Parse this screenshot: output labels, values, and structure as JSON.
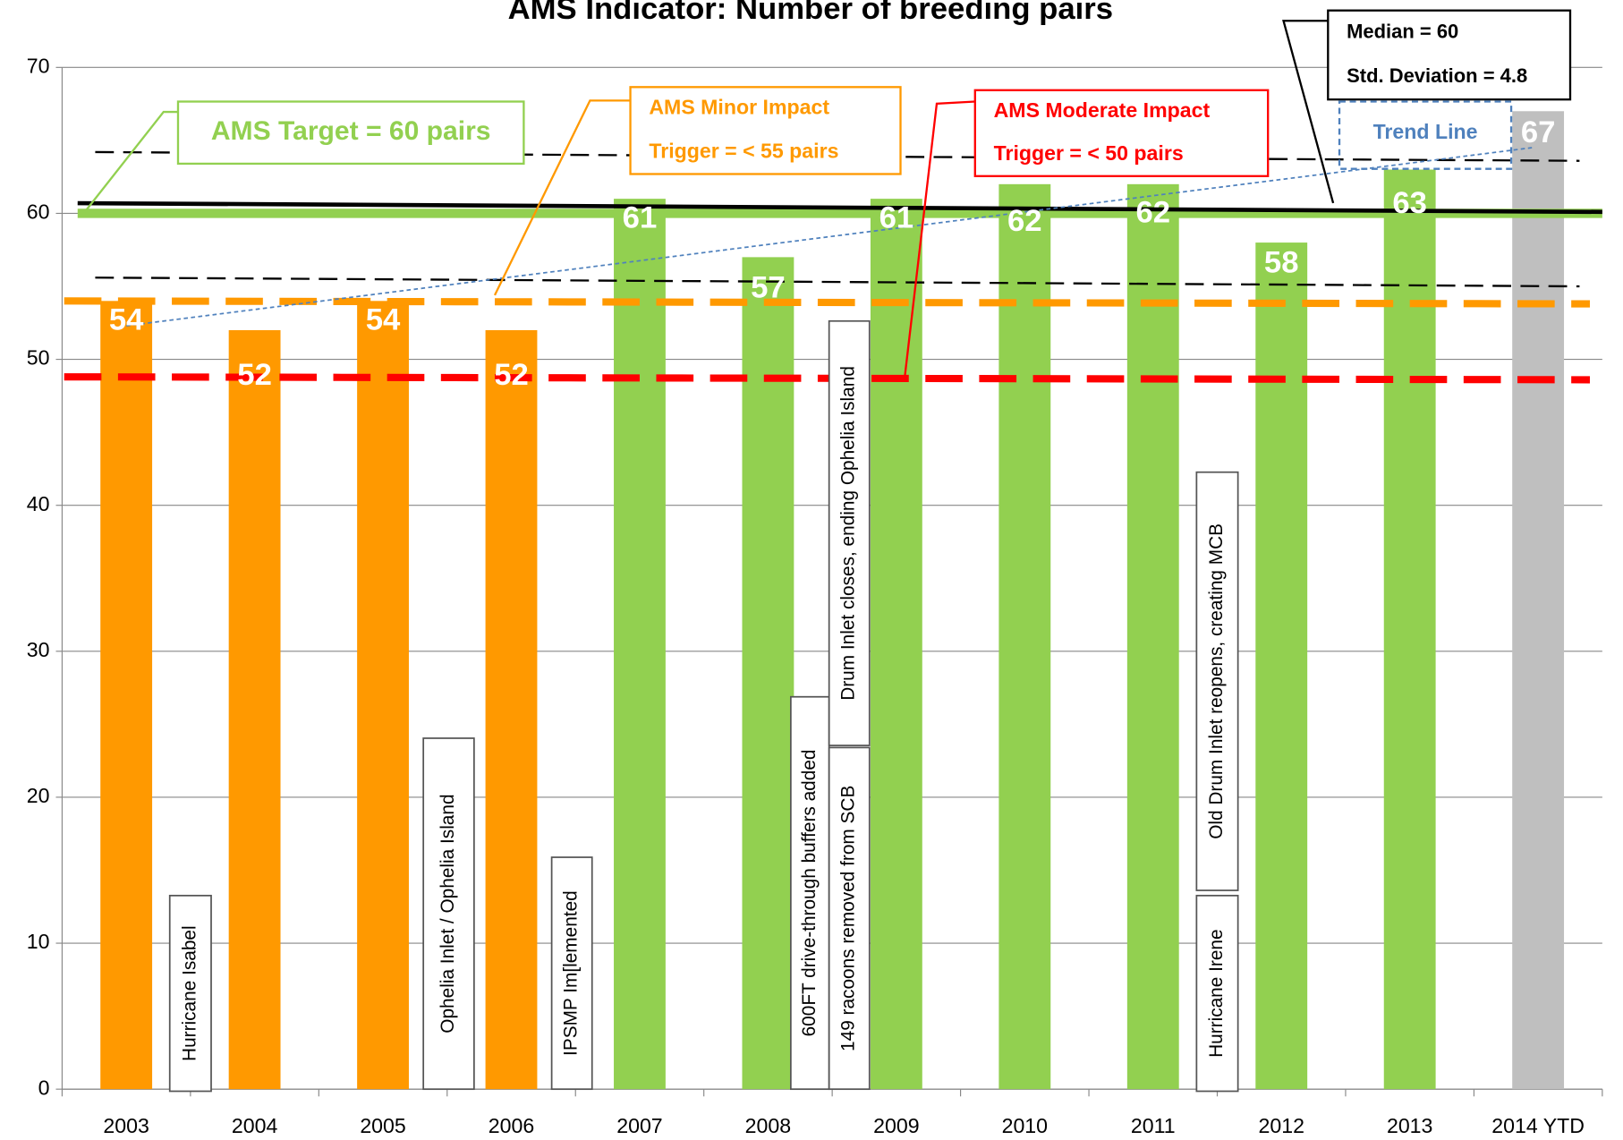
{
  "chart_data": {
    "type": "bar",
    "title": "AMS  Indicator:  Number of breeding pairs",
    "categories": [
      "2003",
      "2004",
      "2005",
      "2006",
      "2007",
      "2008",
      "2009",
      "2010",
      "2011",
      "2012",
      "2013",
      "2014 YTD"
    ],
    "values": [
      54,
      52,
      54,
      52,
      61,
      57,
      61,
      62,
      62,
      58,
      63,
      67
    ],
    "colors": [
      "#ff9900",
      "#ff9900",
      "#ff9900",
      "#ff9900",
      "#92d050",
      "#92d050",
      "#92d050",
      "#92d050",
      "#92d050",
      "#92d050",
      "#92d050",
      "#bfbfbf"
    ],
    "ylim": [
      0,
      70
    ],
    "yticks": [
      0,
      10,
      20,
      30,
      40,
      50,
      60,
      70
    ],
    "grid": true,
    "reference_lines": [
      {
        "start": 60,
        "end": 60,
        "color": "#92d050",
        "style": "solid"
      },
      {
        "start": 60.7,
        "end": 60.1,
        "color": "#000000",
        "style": "solid"
      },
      {
        "start": 64.2,
        "end": 63.6,
        "color": "#000000",
        "style": "dashed"
      },
      {
        "start": 55.6,
        "end": 55.0,
        "color": "#000000",
        "style": "dashed"
      },
      {
        "start": 54,
        "end": 53.8,
        "color": "#ff9900",
        "style": "dashed"
      },
      {
        "start": 48.8,
        "end": 48.6,
        "color": "#ff0000",
        "style": "dashed"
      },
      {
        "start": 52.3,
        "end": 64.5,
        "color": "#4f81bd",
        "style": "dotted"
      }
    ],
    "callouts": [
      {
        "lines": [
          "AMS Target =  60 pairs"
        ],
        "color": "#92d050"
      },
      {
        "lines": [
          "AMS Minor Impact",
          "Trigger  = < 55 pairs"
        ],
        "color": "#ff9900"
      },
      {
        "lines": [
          "AMS Moderate Impact",
          "Trigger =  <  50 pairs"
        ],
        "color": "#ff0000"
      },
      {
        "lines": [
          "Median = 60",
          "Std. Deviation = 4.8"
        ],
        "color": "#000000"
      },
      {
        "lines": [
          "Trend Line"
        ],
        "color": "#4f81bd"
      }
    ],
    "events": [
      "Hurricane Isabel",
      "Ophelia  Inlet  /  Ophelia Island",
      "IPSMP Im[lemented",
      "600FT drive-through buffers  added",
      "Drum Inlet closes, ending Ophelia Island",
      "149 racoons removed from SCB",
      "Old Drum Inlet reopens, creating MCB",
      "Hurricane  Irene"
    ]
  }
}
